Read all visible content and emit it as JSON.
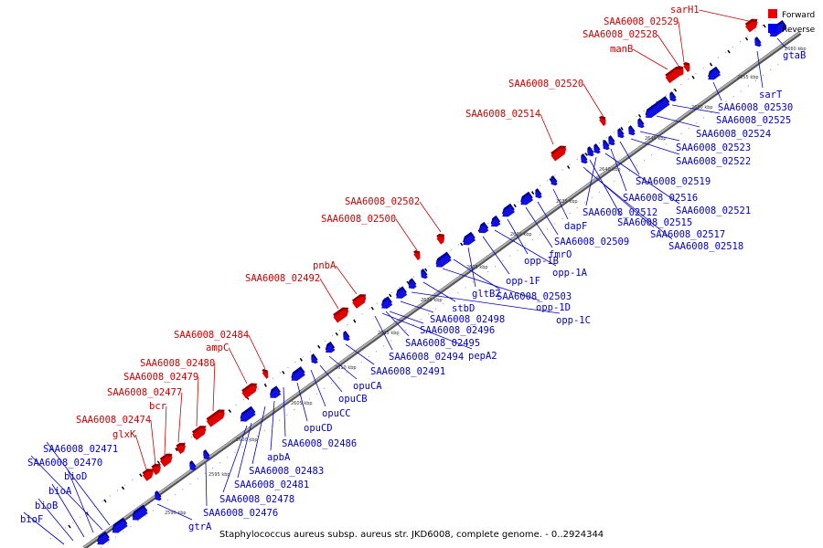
{
  "caption": "Staphylococcus aureus subsp. aureus str. JKD6008, complete genome. - 0..2924344",
  "legend": {
    "forward": {
      "label": "Forward",
      "color": "#ee0000"
    },
    "reverse": {
      "label": "Reverse",
      "color": "#0000ee"
    }
  },
  "ticks": [
    "2590 kbp",
    "2595 kbp",
    "2600 kbp",
    "2605 kbp",
    "2610 kbp",
    "2615 kbp",
    "2620 kbp",
    "2625 kbp",
    "2630 kbp",
    "2635 kbp",
    "2640 kbp",
    "2645 kbp",
    "2650 kbp",
    "2655 kbp",
    "2660 kbp"
  ],
  "forward_genes": [
    "sarH1",
    "SAA6008_02529",
    "SAA6008_02528",
    "manB",
    "SAA6008_02520",
    "SAA6008_02514",
    "SAA6008_02502",
    "SAA6008_02500",
    "pnbA",
    "SAA6008_02492",
    "SAA6008_02484",
    "ampC",
    "SAA6008_02480",
    "SAA6008_02479",
    "SAA6008_02477",
    "bcr",
    "SAA6008_02474",
    "glxK"
  ],
  "reverse_genes": [
    "gtaB",
    "sarT",
    "SAA6008_02530",
    "SAA6008_02525",
    "SAA6008_02524",
    "SAA6008_02523",
    "SAA6008_02522",
    "SAA6008_02519",
    "SAA6008_02516",
    "SAA6008_02521",
    "SAA6008_02512",
    "SAA6008_02515",
    "dapF",
    "SAA6008_02517",
    "SAA6008_02509",
    "SAA6008_02518",
    "fmrO",
    "opp-1B",
    "opp-1A",
    "opp-1F",
    "gltB2",
    "SAA6008_02503",
    "opp-1D",
    "stbD",
    "opp-1C",
    "SAA6008_02498",
    "SAA6008_02496",
    "SAA6008_02495",
    "pepA2",
    "SAA6008_02494",
    "SAA6008_02491",
    "opuCA",
    "opuCB",
    "opuCC",
    "opuCD",
    "SAA6008_02486",
    "apbA",
    "SAA6008_02483",
    "SAA6008_02481",
    "SAA6008_02478",
    "SAA6008_02476",
    "gtrA",
    "SAA6008_02471",
    "SAA6008_02470",
    "bioD",
    "bioA",
    "bioB",
    "bioF"
  ]
}
